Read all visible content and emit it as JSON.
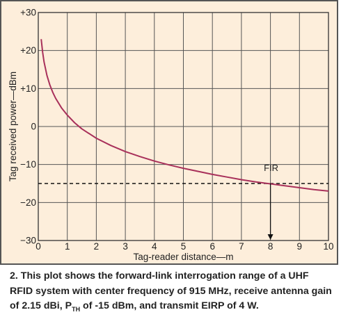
{
  "chart_data": {
    "type": "line",
    "xlabel": "Tag-reader distance—m",
    "ylabel": "Tag received power—dBm",
    "xlim": [
      0,
      10
    ],
    "ylim": [
      -30,
      30
    ],
    "xticks": [
      0,
      1,
      2,
      3,
      4,
      5,
      6,
      7,
      8,
      9,
      10
    ],
    "yticks": [
      {
        "value": 30,
        "label": "+30"
      },
      {
        "value": 20,
        "label": "+20"
      },
      {
        "value": 10,
        "label": "+10"
      },
      {
        "value": 0,
        "label": "0"
      },
      {
        "value": -10,
        "label": "−10"
      },
      {
        "value": -20,
        "label": "−20"
      },
      {
        "value": -30,
        "label": "−30"
      }
    ],
    "grid": true,
    "curve": {
      "color": "#a8305a",
      "x": [
        0.1,
        0.15,
        0.2,
        0.3,
        0.4,
        0.5,
        0.6,
        0.8,
        1,
        1.25,
        1.5,
        2,
        2.5,
        3,
        3.5,
        4,
        4.5,
        5,
        5.5,
        6,
        6.5,
        7,
        7.5,
        8,
        8.5,
        9,
        9.5,
        10
      ],
      "y": [
        23,
        19.5,
        17,
        13.4,
        10.9,
        9,
        7.4,
        4.9,
        3,
        1.0,
        -0.6,
        -3.1,
        -5.0,
        -6.6,
        -7.9,
        -9.1,
        -10.1,
        -11.0,
        -11.8,
        -12.6,
        -13.3,
        -14.0,
        -14.6,
        -15.1,
        -15.6,
        -16.1,
        -16.6,
        -17.0
      ]
    },
    "threshold": {
      "y": -15,
      "style": "dashed",
      "color": "#111111"
    },
    "marker": {
      "label": "FIR",
      "x": 8,
      "y": -15
    }
  },
  "caption": {
    "text_before": "2. This plot shows the forward-link interrogation range of a UHF RFID system with center frequency of 915 MHz, receive antenna gain of 2.15 dBi, P",
    "sub": "TH",
    "text_after": " of -15 dBm, and transmit EIRP of 4 W."
  }
}
